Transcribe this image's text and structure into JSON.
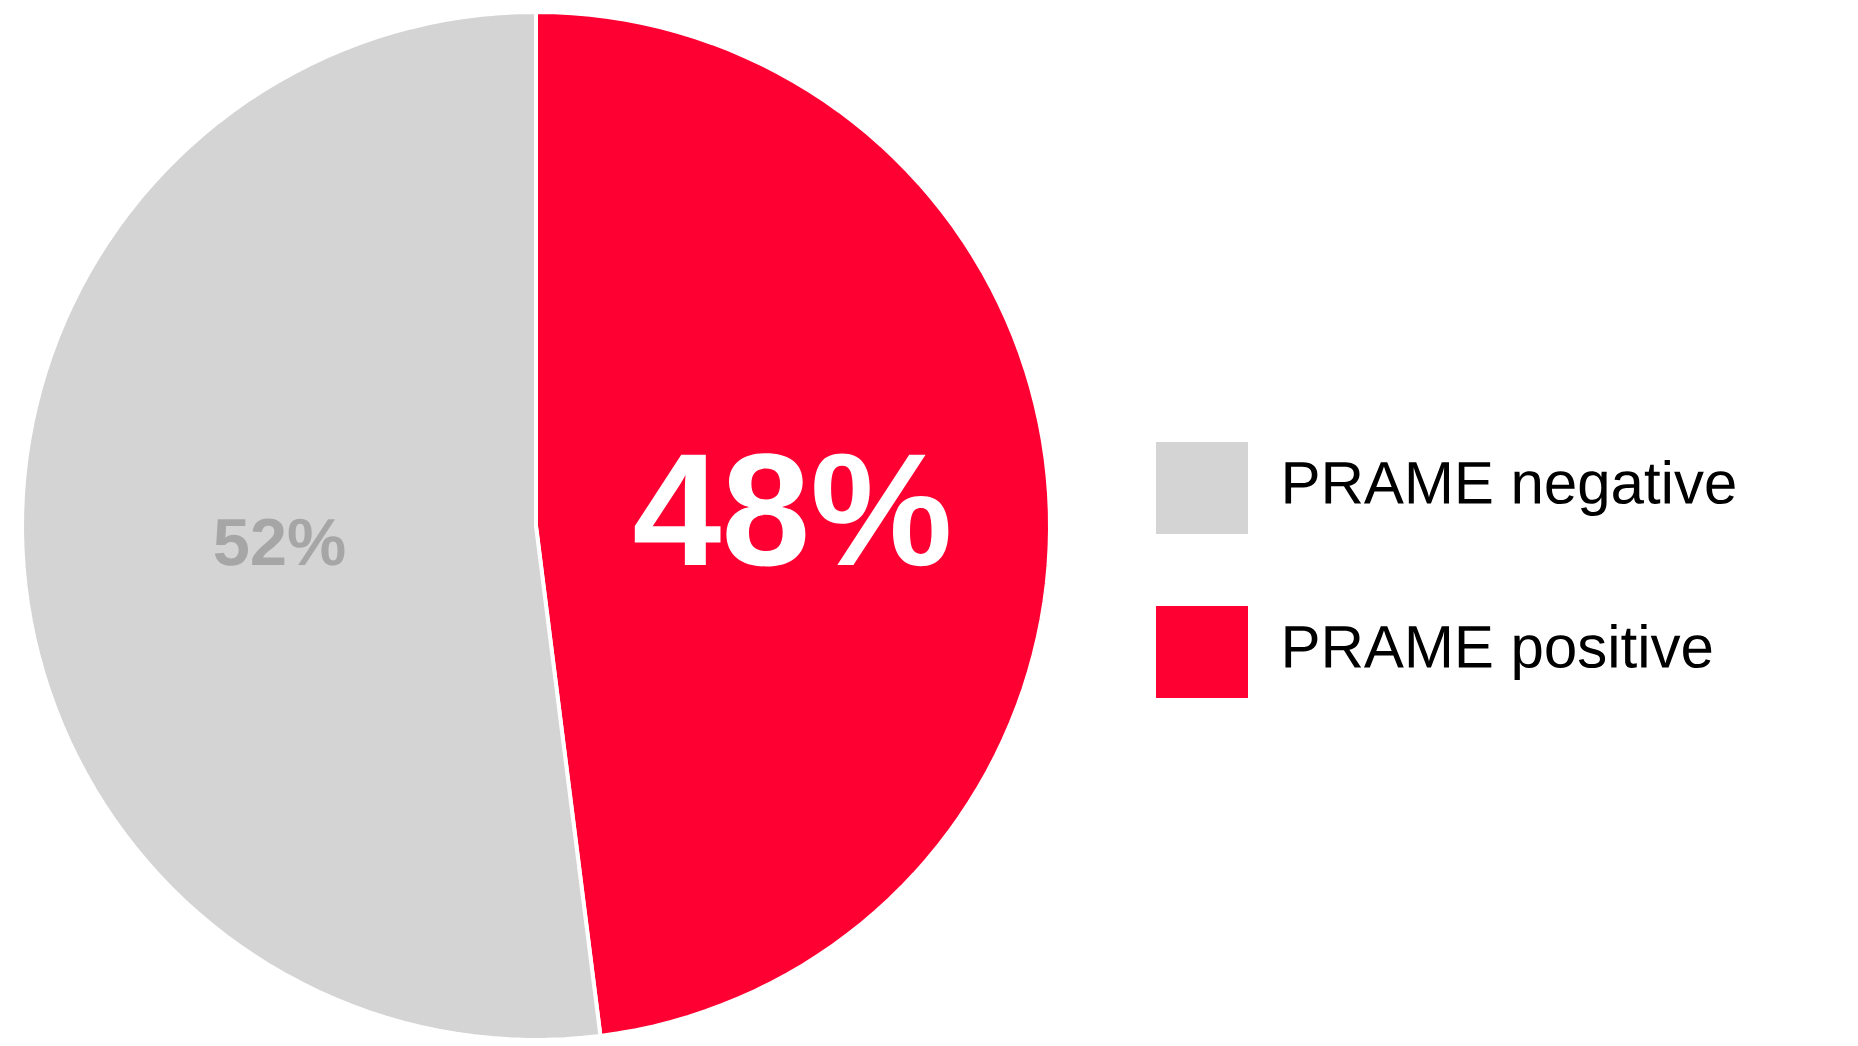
{
  "chart_data": {
    "type": "pie",
    "categories": [
      "PRAME negative",
      "PRAME positive"
    ],
    "values": [
      52,
      48
    ],
    "colors": [
      "#d4d4d4",
      "#ff0033"
    ],
    "value_labels": [
      "52%",
      "48%"
    ],
    "legend": "right"
  }
}
